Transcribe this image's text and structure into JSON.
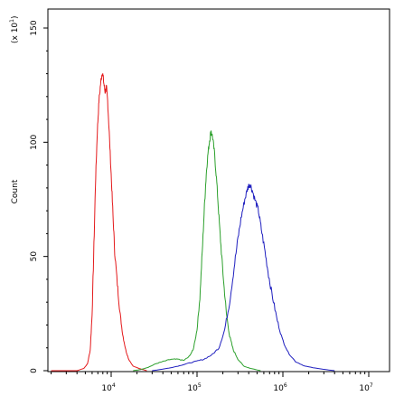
{
  "chart_data": {
    "type": "line",
    "title": "",
    "ylabel": "Count",
    "xlabel": "",
    "y_multiplier": {
      "prefix": "(x 10",
      "exponent": "1",
      "suffix": ")"
    },
    "xscale": "log",
    "xlim": [
      1500,
      12000000
    ],
    "ylim": [
      0,
      160
    ],
    "y_ticks": [
      0,
      50,
      100,
      150
    ],
    "y_tick_labels": [
      "0",
      "50",
      "100",
      "150"
    ],
    "x_ticks": [
      10000,
      100000,
      1000000,
      10000000
    ],
    "x_tick_labels": [
      {
        "base": "10",
        "exp": "4"
      },
      {
        "base": "10",
        "exp": "5"
      },
      {
        "base": "10",
        "exp": "6"
      },
      {
        "base": "10",
        "exp": "7"
      }
    ],
    "grid": false,
    "legend": "none",
    "series": [
      {
        "color": "#e41a1c",
        "points": [
          [
            2000,
            0
          ],
          [
            4000,
            0
          ],
          [
            4800,
            1
          ],
          [
            5300,
            3
          ],
          [
            5700,
            9
          ],
          [
            6000,
            25
          ],
          [
            6300,
            55
          ],
          [
            6600,
            85
          ],
          [
            6900,
            105
          ],
          [
            7200,
            118
          ],
          [
            7600,
            127
          ],
          [
            7900,
            131
          ],
          [
            8200,
            126
          ],
          [
            8500,
            122
          ],
          [
            8800,
            124
          ],
          [
            9100,
            118
          ],
          [
            9500,
            104
          ],
          [
            10000,
            86
          ],
          [
            10500,
            68
          ],
          [
            11000,
            52
          ],
          [
            11800,
            38
          ],
          [
            12600,
            26
          ],
          [
            13600,
            16
          ],
          [
            14800,
            9
          ],
          [
            16000,
            5
          ],
          [
            18000,
            2
          ],
          [
            21000,
            1
          ],
          [
            26000,
            0
          ]
        ]
      },
      {
        "color": "#2ca02c",
        "points": [
          [
            18000,
            0
          ],
          [
            22000,
            0.5
          ],
          [
            27000,
            1.5
          ],
          [
            33000,
            3
          ],
          [
            40000,
            4
          ],
          [
            50000,
            5
          ],
          [
            60000,
            5
          ],
          [
            70000,
            4.5
          ],
          [
            80000,
            6
          ],
          [
            90000,
            9
          ],
          [
            100000,
            18
          ],
          [
            108000,
            32
          ],
          [
            115000,
            52
          ],
          [
            122000,
            72
          ],
          [
            128000,
            86
          ],
          [
            134000,
            95
          ],
          [
            140000,
            101
          ],
          [
            146000,
            105
          ],
          [
            152000,
            102
          ],
          [
            160000,
            95
          ],
          [
            170000,
            82
          ],
          [
            180000,
            67
          ],
          [
            192000,
            52
          ],
          [
            205000,
            38
          ],
          [
            220000,
            25
          ],
          [
            240000,
            15
          ],
          [
            265000,
            9
          ],
          [
            300000,
            5
          ],
          [
            350000,
            2
          ],
          [
            420000,
            1
          ],
          [
            550000,
            0
          ]
        ]
      },
      {
        "color": "#1f1fbf",
        "points": [
          [
            30000,
            0
          ],
          [
            45000,
            1
          ],
          [
            60000,
            2
          ],
          [
            75000,
            3
          ],
          [
            95000,
            4
          ],
          [
            120000,
            5
          ],
          [
            150000,
            7
          ],
          [
            180000,
            10
          ],
          [
            210000,
            18
          ],
          [
            240000,
            30
          ],
          [
            270000,
            45
          ],
          [
            300000,
            58
          ],
          [
            330000,
            68
          ],
          [
            360000,
            75
          ],
          [
            390000,
            80
          ],
          [
            410000,
            82
          ],
          [
            440000,
            79
          ],
          [
            480000,
            74
          ],
          [
            520000,
            70
          ],
          [
            560000,
            62
          ],
          [
            620000,
            52
          ],
          [
            680000,
            42
          ],
          [
            760000,
            32
          ],
          [
            860000,
            22
          ],
          [
            980000,
            14
          ],
          [
            1150000,
            8
          ],
          [
            1400000,
            4
          ],
          [
            1800000,
            2
          ],
          [
            2500000,
            1
          ],
          [
            4000000,
            0
          ]
        ]
      }
    ]
  }
}
